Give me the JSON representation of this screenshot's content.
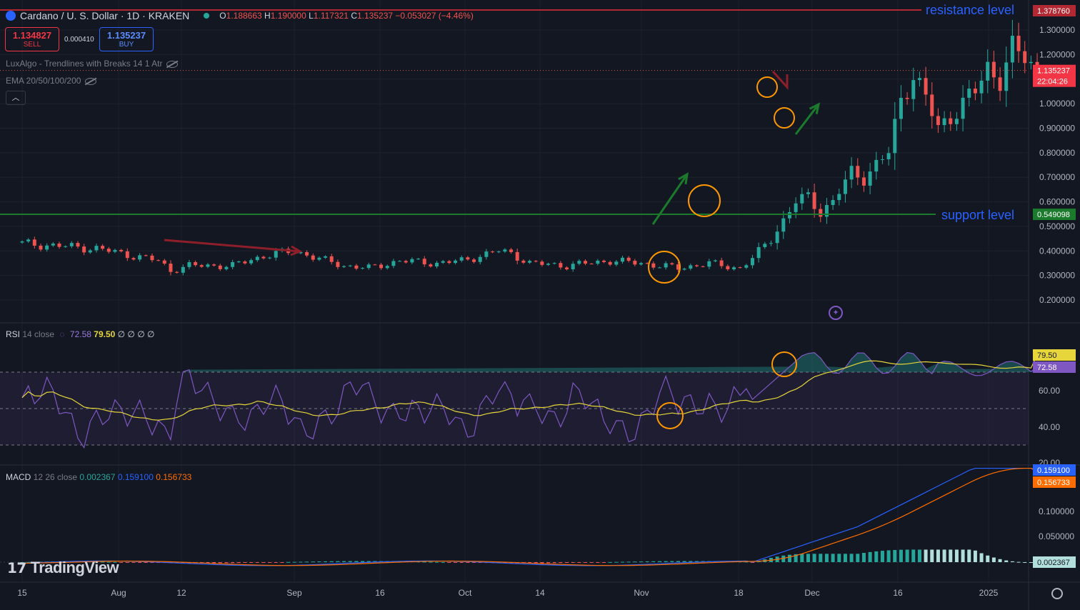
{
  "header": {
    "symbol": "Cardano / U. S. Dollar · 1D · KRAKEN",
    "o_label": "O",
    "o": "1.188663",
    "h_label": "H",
    "h": "1.190000",
    "l_label": "L",
    "l": "1.117321",
    "c_label": "C",
    "c": "1.135237",
    "change": "−0.053027 (−4.46%)"
  },
  "trade": {
    "sell_price": "1.134827",
    "sell_label": "SELL",
    "spread": "0.000410",
    "buy_price": "1.135237",
    "buy_label": "BUY"
  },
  "indicators": {
    "luxalgo": "LuxAlgo - Trendlines with Breaks 14 1 Atr",
    "ema": "EMA 20/50/100/200",
    "collapse_icon": "chevron-up-icon"
  },
  "annotations": {
    "resistance_text": "resistance level",
    "support_text": "support level",
    "resistance_value": 1.37876,
    "support_value": 0.549098
  },
  "price_labels": {
    "resistance": "1.378760",
    "last": "1.135237",
    "countdown": "22:04:26",
    "support": "0.549098"
  },
  "rsi": {
    "title": "RSI",
    "params": "14 close",
    "value": "72.58",
    "ma_value": "79.50",
    "extras": "∅ ∅ ∅ ∅",
    "ticks": [
      "60.00",
      "40.00",
      "20.00"
    ],
    "label_rsi": "72.58",
    "label_ma": "79.50"
  },
  "macd": {
    "title": "MACD",
    "params": "12 26 close",
    "hist": "0.002367",
    "macd": "0.159100",
    "signal": "0.156733",
    "ticks": [
      "0.100000",
      "0.050000"
    ]
  },
  "price_axis_ticks": [
    "1.300000",
    "1.200000",
    "1.000000",
    "0.900000",
    "0.800000",
    "0.700000",
    "0.600000",
    "0.500000",
    "0.400000",
    "0.300000",
    "0.200000"
  ],
  "time_axis": [
    "15",
    "Aug",
    "12",
    "Sep",
    "16",
    "Oct",
    "14",
    "Nov",
    "18",
    "Dec",
    "16",
    "2025"
  ],
  "brand": "TradingView",
  "colors": {
    "bg": "#131722",
    "up": "#26a69a",
    "down": "#ef5350",
    "resistance": "#b22833",
    "support": "#1b7a2c",
    "rsi_line": "#7e57c2",
    "rsi_ma": "#e6d53b",
    "macd_line": "#2962ff",
    "signal_line": "#ff6d00",
    "annotation_text": "#2962ff",
    "circle": "#ff9800"
  },
  "chart_data": {
    "type": "candlestick",
    "price_range": [
      0.15,
      1.4
    ],
    "last_price": 1.135237,
    "candles_summary": "ADA/USD daily, sideways 0.30–0.45 Jul–Oct 2024, breakout early Nov to ~1.30 in Dec",
    "rsi_range": [
      20,
      90
    ],
    "rsi_band": [
      30,
      70
    ],
    "macd_range": [
      -0.01,
      0.17
    ]
  }
}
